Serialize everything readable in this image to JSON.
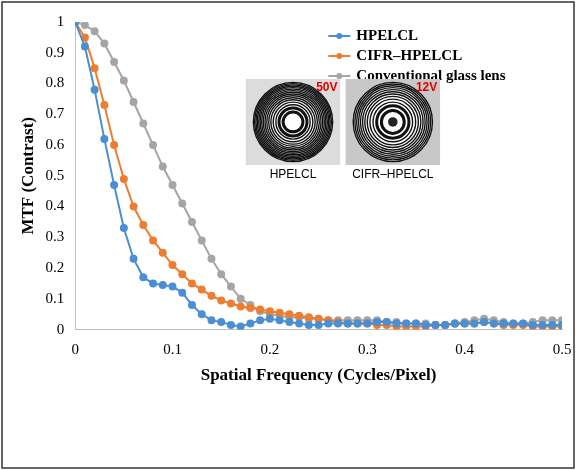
{
  "chart_data": {
    "type": "line",
    "x_label": "Spatial Frequency (Cycles/Pixel)",
    "y_label": "MTF (Contrast)",
    "x": [
      0,
      0.01,
      0.02,
      0.03,
      0.04,
      0.05,
      0.06,
      0.07,
      0.08,
      0.09,
      0.1,
      0.11,
      0.12,
      0.13,
      0.14,
      0.15,
      0.16,
      0.17,
      0.18,
      0.19,
      0.2,
      0.21,
      0.22,
      0.23,
      0.24,
      0.25,
      0.26,
      0.27,
      0.28,
      0.29,
      0.3,
      0.31,
      0.32,
      0.33,
      0.34,
      0.35,
      0.36,
      0.37,
      0.38,
      0.39,
      0.4,
      0.41,
      0.42,
      0.43,
      0.44,
      0.45,
      0.46,
      0.47,
      0.48,
      0.49,
      0.5
    ],
    "series": [
      {
        "name": "HPELCL",
        "color": "#4a8fd4",
        "values": [
          1,
          0.92,
          0.78,
          0.62,
          0.47,
          0.33,
          0.23,
          0.17,
          0.15,
          0.145,
          0.14,
          0.12,
          0.08,
          0.05,
          0.03,
          0.025,
          0.015,
          0.01,
          0.02,
          0.03,
          0.035,
          0.03,
          0.025,
          0.02,
          0.015,
          0.015,
          0.02,
          0.02,
          0.02,
          0.02,
          0.02,
          0.025,
          0.025,
          0.02,
          0.02,
          0.02,
          0.015,
          0.015,
          0.015,
          0.02,
          0.02,
          0.02,
          0.025,
          0.02,
          0.02,
          0.02,
          0.02,
          0.015,
          0.015,
          0.015,
          0.015
        ]
      },
      {
        "name": "CIFR–HPELCL",
        "color": "#ed7d31",
        "values": [
          1,
          0.95,
          0.85,
          0.73,
          0.6,
          0.49,
          0.4,
          0.34,
          0.29,
          0.25,
          0.21,
          0.18,
          0.15,
          0.13,
          0.11,
          0.095,
          0.085,
          0.075,
          0.07,
          0.065,
          0.06,
          0.055,
          0.05,
          0.045,
          0.04,
          0.035,
          0.03,
          0.025,
          0.02,
          0.02,
          0.02,
          0.015,
          0.015,
          0.01,
          0.01,
          0.01,
          0.01,
          0.015,
          0.015,
          0.02,
          0.02,
          0.02,
          0.025,
          0.02,
          0.015,
          0.015,
          0.015,
          0.01,
          0.01,
          0.01,
          0.01
        ]
      },
      {
        "name": "Conventional glass lens",
        "color": "#a5a5a5",
        "values": [
          1,
          0.99,
          0.97,
          0.93,
          0.87,
          0.81,
          0.74,
          0.67,
          0.6,
          0.53,
          0.47,
          0.41,
          0.35,
          0.29,
          0.23,
          0.18,
          0.14,
          0.1,
          0.08,
          0.06,
          0.05,
          0.045,
          0.04,
          0.04,
          0.035,
          0.035,
          0.03,
          0.03,
          0.03,
          0.03,
          0.03,
          0.03,
          0.025,
          0.025,
          0.02,
          0.02,
          0.02,
          0.015,
          0.015,
          0.02,
          0.025,
          0.03,
          0.035,
          0.03,
          0.025,
          0.02,
          0.02,
          0.025,
          0.03,
          0.03,
          0.03
        ]
      }
    ],
    "xlim": [
      0,
      0.5
    ],
    "ylim": [
      0,
      1
    ],
    "xticks": [
      0,
      0.1,
      0.2,
      0.3,
      0.4,
      0.5
    ],
    "yticks": [
      0,
      0.1,
      0.2,
      0.3,
      0.4,
      0.5,
      0.6,
      0.7,
      0.8,
      0.9,
      1
    ],
    "grid": false,
    "legend": "upper right",
    "marker": "circle",
    "annotations": [
      {
        "text": "HPELCL",
        "tag": "50V"
      },
      {
        "text": "CIFR–HPELCL",
        "tag": "12V"
      }
    ]
  }
}
